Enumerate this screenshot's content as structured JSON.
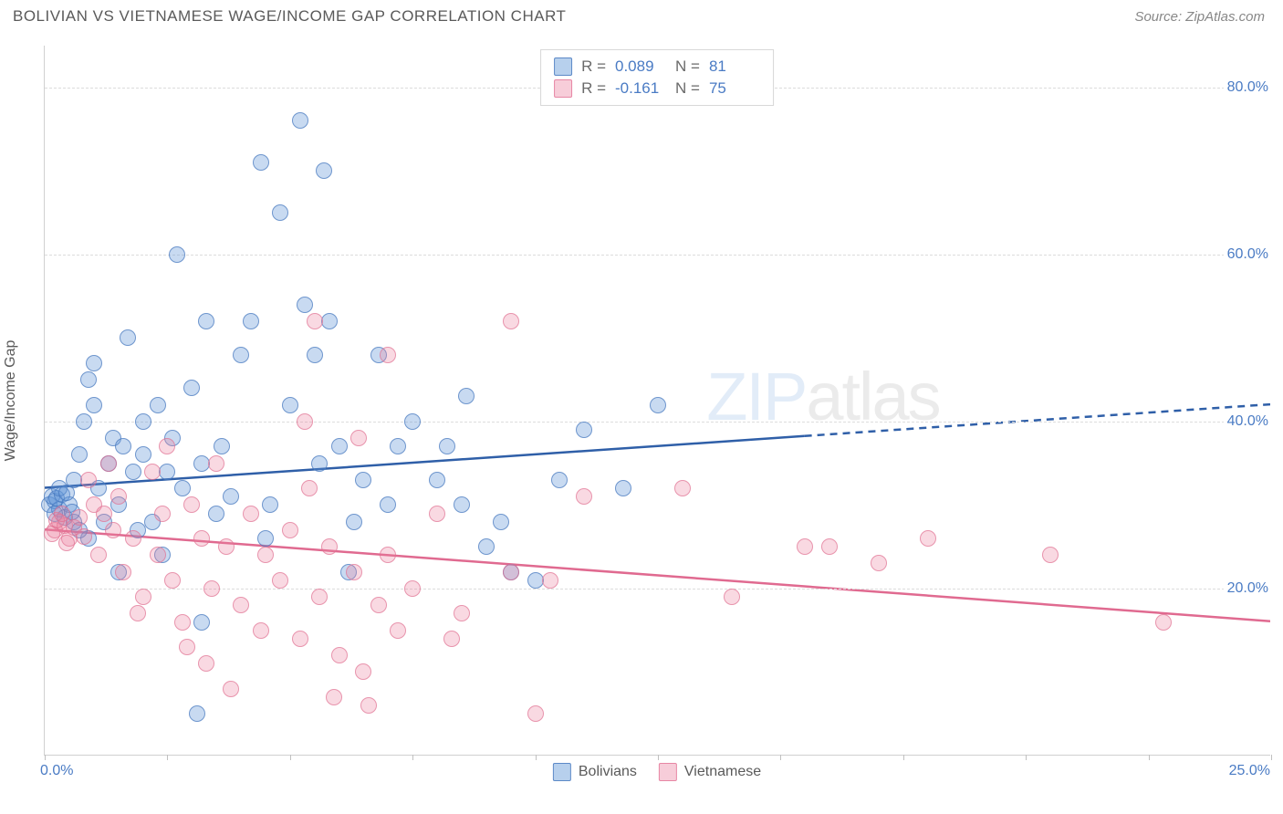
{
  "header": {
    "title": "BOLIVIAN VS VIETNAMESE WAGE/INCOME GAP CORRELATION CHART",
    "source": "Source: ZipAtlas.com"
  },
  "chart": {
    "type": "scatter",
    "y_axis_label": "Wage/Income Gap",
    "xlim": [
      0,
      25
    ],
    "ylim": [
      0,
      85
    ],
    "x_ticks": [
      0,
      2.5,
      5,
      7.5,
      10,
      12.5,
      15,
      17.5,
      20,
      22.5,
      25
    ],
    "x_tick_labels": {
      "min": "0.0%",
      "max": "25.0%"
    },
    "y_ticks": [
      20,
      40,
      60,
      80
    ],
    "y_tick_labels": [
      "20.0%",
      "40.0%",
      "60.0%",
      "80.0%"
    ],
    "grid_color": "#dcdcdc",
    "axis_color": "#d0d0d0",
    "marker_size": 18,
    "background_color": "#ffffff",
    "series": [
      {
        "name": "Bolivians",
        "color_fill": "rgba(96,150,215,0.35)",
        "color_stroke": "rgba(70,120,190,0.7)",
        "stats": {
          "R": "0.089",
          "N": "81"
        },
        "trend": {
          "y_at_x0": 32,
          "y_at_x25": 42,
          "solid_until_x": 15.5,
          "stroke": "#2f5fa8",
          "width": 2.5
        },
        "points": [
          [
            0.1,
            30
          ],
          [
            0.2,
            30.5
          ],
          [
            0.15,
            31
          ],
          [
            0.3,
            29.5
          ],
          [
            0.25,
            30.8
          ],
          [
            0.35,
            31.2
          ],
          [
            0.4,
            28.5
          ],
          [
            0.2,
            29
          ],
          [
            0.5,
            30
          ],
          [
            0.3,
            32
          ],
          [
            0.6,
            28
          ],
          [
            0.45,
            31.5
          ],
          [
            0.55,
            29.2
          ],
          [
            0.7,
            36
          ],
          [
            0.8,
            40
          ],
          [
            1.0,
            42
          ],
          [
            0.9,
            45
          ],
          [
            1.2,
            28
          ],
          [
            1.1,
            32
          ],
          [
            1.3,
            35
          ],
          [
            1.4,
            38
          ],
          [
            1.0,
            47
          ],
          [
            1.5,
            30
          ],
          [
            1.6,
            37
          ],
          [
            1.8,
            34
          ],
          [
            2.0,
            40
          ],
          [
            2.2,
            28
          ],
          [
            1.7,
            50
          ],
          [
            2.0,
            36
          ],
          [
            2.5,
            34
          ],
          [
            2.3,
            42
          ],
          [
            2.6,
            38
          ],
          [
            2.8,
            32
          ],
          [
            3.0,
            44
          ],
          [
            2.7,
            60
          ],
          [
            3.2,
            35
          ],
          [
            3.5,
            29
          ],
          [
            3.3,
            52
          ],
          [
            3.6,
            37
          ],
          [
            3.8,
            31
          ],
          [
            4.0,
            48
          ],
          [
            4.2,
            52
          ],
          [
            4.4,
            71
          ],
          [
            4.5,
            26
          ],
          [
            4.8,
            65
          ],
          [
            5.0,
            42
          ],
          [
            5.3,
            54
          ],
          [
            5.6,
            35
          ],
          [
            5.2,
            76
          ],
          [
            5.5,
            48
          ],
          [
            6.0,
            37
          ],
          [
            5.8,
            52
          ],
          [
            5.7,
            70
          ],
          [
            6.3,
            28
          ],
          [
            6.5,
            33
          ],
          [
            6.8,
            48
          ],
          [
            7.0,
            30
          ],
          [
            6.2,
            22
          ],
          [
            7.5,
            40
          ],
          [
            8.0,
            33
          ],
          [
            8.5,
            30
          ],
          [
            9.0,
            25
          ],
          [
            8.6,
            43
          ],
          [
            9.3,
            28
          ],
          [
            9.5,
            22
          ],
          [
            10.0,
            21
          ],
          [
            10.5,
            33
          ],
          [
            11.0,
            39
          ],
          [
            11.8,
            32
          ],
          [
            12.5,
            42
          ],
          [
            3.2,
            16
          ],
          [
            3.1,
            5
          ],
          [
            2.4,
            24
          ],
          [
            1.9,
            27
          ],
          [
            1.5,
            22
          ],
          [
            0.9,
            26
          ],
          [
            0.7,
            27
          ],
          [
            0.6,
            33
          ],
          [
            4.6,
            30
          ],
          [
            7.2,
            37
          ],
          [
            8.2,
            37
          ]
        ]
      },
      {
        "name": "Vietnamese",
        "color_fill": "rgba(235,130,160,0.3)",
        "color_stroke": "rgba(225,110,145,0.65)",
        "stats": {
          "R": "-0.161",
          "N": "75"
        },
        "trend": {
          "y_at_x0": 27,
          "y_at_x25": 16,
          "solid_until_x": 25,
          "stroke": "#e06a90",
          "width": 2.5
        },
        "points": [
          [
            0.2,
            27
          ],
          [
            0.3,
            28
          ],
          [
            0.15,
            26.5
          ],
          [
            0.4,
            27.5
          ],
          [
            0.25,
            28.2
          ],
          [
            0.5,
            26
          ],
          [
            0.35,
            29
          ],
          [
            0.6,
            27.3
          ],
          [
            0.45,
            25.5
          ],
          [
            0.7,
            28.5
          ],
          [
            0.8,
            26.2
          ],
          [
            1.0,
            30
          ],
          [
            0.9,
            33
          ],
          [
            1.2,
            29
          ],
          [
            1.1,
            24
          ],
          [
            1.4,
            27
          ],
          [
            1.3,
            35
          ],
          [
            1.6,
            22
          ],
          [
            1.5,
            31
          ],
          [
            1.8,
            26
          ],
          [
            2.0,
            19
          ],
          [
            2.2,
            34
          ],
          [
            1.9,
            17
          ],
          [
            2.4,
            29
          ],
          [
            2.3,
            24
          ],
          [
            2.6,
            21
          ],
          [
            2.5,
            37
          ],
          [
            2.8,
            16
          ],
          [
            3.0,
            30
          ],
          [
            2.9,
            13
          ],
          [
            3.2,
            26
          ],
          [
            3.4,
            20
          ],
          [
            3.5,
            35
          ],
          [
            3.3,
            11
          ],
          [
            3.7,
            25
          ],
          [
            4.0,
            18
          ],
          [
            4.2,
            29
          ],
          [
            4.4,
            15
          ],
          [
            4.5,
            24
          ],
          [
            3.8,
            8
          ],
          [
            4.8,
            21
          ],
          [
            5.0,
            27
          ],
          [
            5.2,
            14
          ],
          [
            5.4,
            32
          ],
          [
            5.6,
            19
          ],
          [
            5.8,
            25
          ],
          [
            6.0,
            12
          ],
          [
            6.3,
            22
          ],
          [
            5.5,
            52
          ],
          [
            6.5,
            10
          ],
          [
            6.8,
            18
          ],
          [
            7.0,
            24
          ],
          [
            7.2,
            15
          ],
          [
            7.5,
            20
          ],
          [
            5.9,
            7
          ],
          [
            6.6,
            6
          ],
          [
            8.0,
            29
          ],
          [
            8.5,
            17
          ],
          [
            7.0,
            48
          ],
          [
            9.5,
            22
          ],
          [
            9.5,
            52
          ],
          [
            10.0,
            5
          ],
          [
            10.3,
            21
          ],
          [
            11.0,
            31
          ],
          [
            5.3,
            40
          ],
          [
            13.0,
            32
          ],
          [
            14.0,
            19
          ],
          [
            15.5,
            25
          ],
          [
            16.0,
            25
          ],
          [
            17.0,
            23
          ],
          [
            18.0,
            26
          ],
          [
            20.5,
            24
          ],
          [
            22.8,
            16
          ],
          [
            6.4,
            38
          ],
          [
            8.3,
            14
          ]
        ]
      }
    ],
    "legend_top": {
      "rows": [
        {
          "swatch": "blue",
          "r_label": "R =",
          "r_val": "0.089",
          "n_label": "N =",
          "n_val": "81"
        },
        {
          "swatch": "pink",
          "r_label": "R =",
          "r_val": "-0.161",
          "n_label": "N =",
          "n_val": "75"
        }
      ]
    },
    "legend_bottom": {
      "items": [
        {
          "swatch": "blue",
          "label": "Bolivians"
        },
        {
          "swatch": "pink",
          "label": "Vietnamese"
        }
      ]
    },
    "watermark": {
      "bold": "ZIP",
      "thin": "atlas"
    }
  }
}
